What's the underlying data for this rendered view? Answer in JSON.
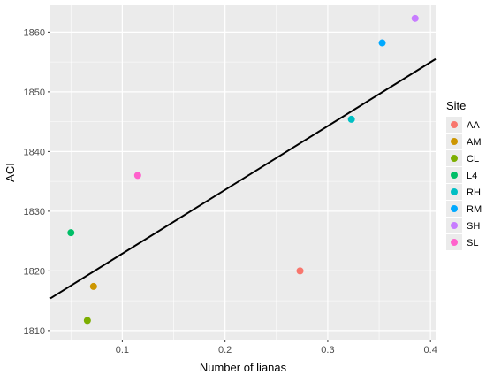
{
  "chart_data": {
    "type": "scatter",
    "title": "",
    "xlabel": "Number of lianas",
    "ylabel": "ACI",
    "xlim": [
      0.03,
      0.405
    ],
    "ylim": [
      1808.5,
      1864.5
    ],
    "x_ticks": [
      "0.1",
      "0.2",
      "0.3",
      "0.4"
    ],
    "x_tick_values": [
      0.1,
      0.2,
      0.3,
      0.4
    ],
    "y_ticks": [
      "1810",
      "1820",
      "1830",
      "1840",
      "1850",
      "1860"
    ],
    "y_tick_values": [
      1810,
      1820,
      1830,
      1840,
      1850,
      1860
    ],
    "grid": true,
    "legend": {
      "title": "Site",
      "position": "right"
    },
    "series": [
      {
        "name": "AA",
        "color": "#F8766D",
        "x": 0.273,
        "y": 1820.0
      },
      {
        "name": "AM",
        "color": "#CD9600",
        "x": 0.072,
        "y": 1817.4
      },
      {
        "name": "CL",
        "color": "#7CAE00",
        "x": 0.066,
        "y": 1811.7
      },
      {
        "name": "L4",
        "color": "#00BE67",
        "x": 0.05,
        "y": 1826.4
      },
      {
        "name": "RH",
        "color": "#00BFC4",
        "x": 0.323,
        "y": 1845.4
      },
      {
        "name": "RM",
        "color": "#00A9FF",
        "x": 0.353,
        "y": 1858.2
      },
      {
        "name": "SH",
        "color": "#C77CFF",
        "x": 0.385,
        "y": 1862.3
      },
      {
        "name": "SL",
        "color": "#FF61CC",
        "x": 0.115,
        "y": 1836.0
      }
    ],
    "trend_line": {
      "x": [
        0.03,
        0.405
      ],
      "y": [
        1815.4,
        1855.5
      ],
      "color": "#000000"
    },
    "panel_color": "#EBEBEB",
    "grid_color": "#FFFFFF"
  }
}
